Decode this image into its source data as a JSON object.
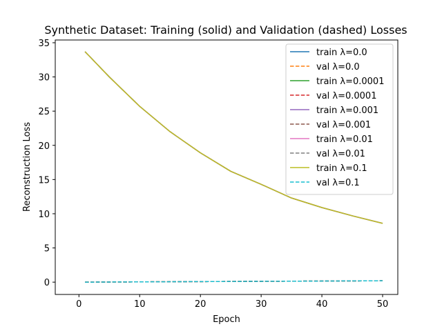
{
  "chart_data": {
    "type": "line",
    "title": "Synthetic Dataset: Training (solid) and Validation (dashed) Losses",
    "xlabel": "Epoch",
    "ylabel": "Reconstruction Loss",
    "xlim": [
      -3.9,
      52.5
    ],
    "ylim": [
      -1.8,
      35.4
    ],
    "xticks": [
      0,
      10,
      20,
      30,
      40,
      50
    ],
    "yticks": [
      0,
      5,
      10,
      15,
      20,
      25,
      30,
      35
    ],
    "grid": false,
    "legend_location": "top-right",
    "x": [
      1,
      5,
      10,
      15,
      20,
      25,
      30,
      35,
      40,
      45,
      50
    ],
    "series": [
      {
        "name": "train λ=0.0",
        "color": "#1f77b4",
        "style": "solid",
        "values": [
          33.7,
          30.0,
          25.7,
          22.0,
          18.9,
          16.2,
          14.3,
          12.3,
          10.9,
          9.7,
          8.6
        ]
      },
      {
        "name": "val λ=0.0",
        "color": "#ff7f0e",
        "style": "dashed",
        "values": [
          0.0,
          0.02,
          0.04,
          0.06,
          0.08,
          0.1,
          0.12,
          0.14,
          0.16,
          0.18,
          0.2
        ]
      },
      {
        "name": "train λ=0.0001",
        "color": "#2ca02c",
        "style": "solid",
        "values": [
          33.7,
          30.0,
          25.7,
          22.0,
          18.9,
          16.2,
          14.3,
          12.3,
          10.9,
          9.7,
          8.6
        ]
      },
      {
        "name": "val λ=0.0001",
        "color": "#d62728",
        "style": "dashed",
        "values": [
          0.0,
          0.02,
          0.04,
          0.06,
          0.08,
          0.1,
          0.12,
          0.14,
          0.16,
          0.18,
          0.2
        ]
      },
      {
        "name": "train λ=0.001",
        "color": "#9467bd",
        "style": "solid",
        "values": [
          33.7,
          30.0,
          25.7,
          22.0,
          18.9,
          16.2,
          14.3,
          12.3,
          10.9,
          9.7,
          8.6
        ]
      },
      {
        "name": "val λ=0.001",
        "color": "#8c564b",
        "style": "dashed",
        "values": [
          0.0,
          0.02,
          0.04,
          0.06,
          0.08,
          0.1,
          0.12,
          0.14,
          0.16,
          0.18,
          0.2
        ]
      },
      {
        "name": "train λ=0.01",
        "color": "#e377c2",
        "style": "solid",
        "values": [
          33.7,
          30.0,
          25.7,
          22.0,
          18.9,
          16.2,
          14.3,
          12.3,
          10.9,
          9.7,
          8.6
        ]
      },
      {
        "name": "val λ=0.01",
        "color": "#7f7f7f",
        "style": "dashed",
        "values": [
          0.0,
          0.02,
          0.04,
          0.06,
          0.08,
          0.1,
          0.12,
          0.14,
          0.16,
          0.18,
          0.2
        ]
      },
      {
        "name": "train λ=0.1",
        "color": "#bcbd22",
        "style": "solid",
        "values": [
          33.7,
          30.0,
          25.7,
          22.0,
          18.9,
          16.2,
          14.3,
          12.3,
          10.9,
          9.7,
          8.6
        ]
      },
      {
        "name": "val λ=0.1",
        "color": "#17becf",
        "style": "dashed",
        "values": [
          0.0,
          0.02,
          0.04,
          0.06,
          0.08,
          0.1,
          0.12,
          0.14,
          0.16,
          0.18,
          0.2
        ]
      }
    ]
  }
}
